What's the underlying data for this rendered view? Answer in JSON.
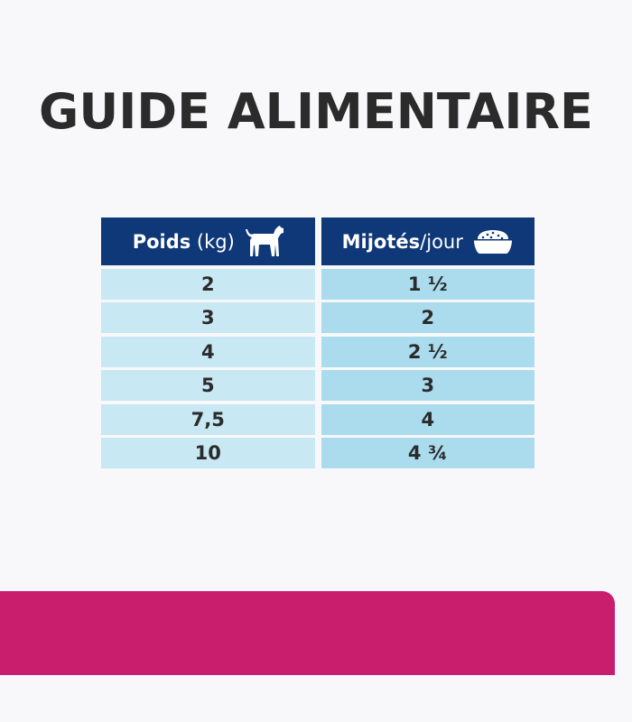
{
  "title": "GUIDE ALIMENTAIRE",
  "table": {
    "header": {
      "weight_bold": "Poids",
      "weight_unit": " (kg)",
      "weight_icon": "dog-icon",
      "portion_bold": "Mijotés",
      "portion_unit": "/jour",
      "portion_icon": "food-bowl-icon"
    },
    "rows": [
      {
        "weight": "2",
        "portion": "1 ½"
      },
      {
        "weight": "3",
        "portion": "2"
      },
      {
        "weight": "4",
        "portion": "2 ½"
      },
      {
        "weight": "5",
        "portion": "3"
      },
      {
        "weight": "7,5",
        "portion": "4"
      },
      {
        "weight": "10",
        "portion": "4 ¾"
      }
    ]
  },
  "colors": {
    "header": "#0f3878",
    "left_cells": "#c8e8f3",
    "right_cells": "#aadcee",
    "band": "#c91d6e"
  }
}
